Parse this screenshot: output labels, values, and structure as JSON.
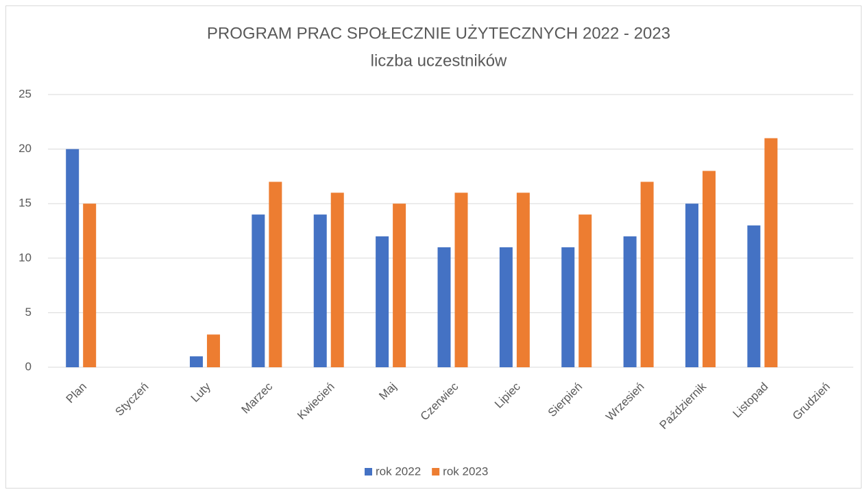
{
  "chart_data": {
    "type": "bar",
    "title": "PROGRAM PRAC SPOŁECZNIE UŻYTECZNYCH 2022 - 2023",
    "subtitle": "liczba uczestników",
    "categories": [
      "Plan",
      "Styczeń",
      "Luty",
      "Marzec",
      "Kwiecień",
      "Maj",
      "Czerwiec",
      "Lipiec",
      "Sierpień",
      "Wrzesień",
      "Październik",
      "Listopad",
      "Grudzień"
    ],
    "series": [
      {
        "name": "rok 2022",
        "color": "#4472c4",
        "values": [
          20,
          null,
          1,
          14,
          14,
          12,
          11,
          11,
          11,
          12,
          15,
          13,
          null
        ]
      },
      {
        "name": "rok 2023",
        "color": "#ed7d31",
        "values": [
          15,
          null,
          3,
          17,
          16,
          15,
          16,
          16,
          14,
          17,
          18,
          21,
          null
        ]
      }
    ],
    "ylim": [
      0,
      25
    ],
    "yticks": [
      0,
      5,
      10,
      15,
      20,
      25
    ],
    "grid": true,
    "legend": "bottom"
  }
}
